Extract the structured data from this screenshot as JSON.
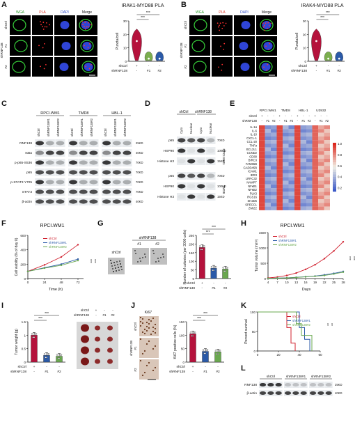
{
  "panels": {
    "A": {
      "letter": "A",
      "title": "IRAK1-MYD88 PLA",
      "channels": [
        "WGA",
        "PLA",
        "DAPI",
        "Merge"
      ],
      "row_labels": [
        "shCtrl",
        "#1",
        "#2"
      ],
      "group_label": "shRNF138",
      "ylabel": "Puncta/cell",
      "sig": [
        "***",
        "***"
      ],
      "xrows": [
        {
          "label": "shCtrl",
          "vals": [
            "+",
            "-",
            "-"
          ]
        },
        {
          "label": "shRNF138",
          "vals": [
            "-",
            "#1",
            "#2"
          ]
        }
      ]
    },
    "B": {
      "letter": "B",
      "title": "IRAK4-MYD88 PLA",
      "channels": [
        "WGA",
        "PLA",
        "DAPI",
        "Merge"
      ],
      "row_labels": [
        "shCtrl",
        "#1",
        "#2"
      ],
      "group_label": "shRNF138",
      "ylabel": "Puncta/cell",
      "sig": [
        "***",
        "***"
      ],
      "xrows": [
        {
          "label": "shCtrl",
          "vals": [
            "+",
            "-",
            "-"
          ]
        },
        {
          "label": "shRNF138",
          "vals": [
            "-",
            "#1",
            "#2"
          ]
        }
      ]
    },
    "C": {
      "letter": "C",
      "cells": [
        "RPCI.WM1",
        "TMD8",
        "HBL-1"
      ],
      "lanes": [
        "shCtrl",
        "shRNF138#1",
        "shRNF138#2"
      ],
      "blots": [
        "RNF138",
        "IκBα",
        "p-p65-S536",
        "p65",
        "p-STAT3 Y705",
        "STAT3",
        "β-actin"
      ],
      "mw": [
        "25KD",
        "40KD",
        "70KD",
        "70KD",
        "70KD",
        "70KD",
        "40KD"
      ]
    },
    "D": {
      "letter": "D",
      "groups": [
        "shCtrl",
        "shRNF138"
      ],
      "fractions": [
        "Cyto",
        "Nuclear",
        "Cyto",
        "Nuclear"
      ],
      "blots": [
        "p65",
        "HSP90",
        "Histone H3",
        "p65",
        "HSP90",
        "Histone H3"
      ],
      "mw": [
        "70KD",
        "100KD",
        "15KD",
        "70KD",
        "100KD",
        "15KD"
      ],
      "cells": [
        "RPCI.WM1",
        "TMD8"
      ]
    },
    "E": {
      "letter": "E",
      "cells": [
        "RPCI.WM1",
        "TMD8",
        "HBL-1",
        "U2932"
      ],
      "row1": {
        "label": "shCtrl",
        "vals": [
          "+",
          "-",
          "-",
          "+",
          "-",
          "-",
          "+",
          "-",
          "-",
          "+",
          "-",
          "-"
        ]
      },
      "row2": {
        "label": "shRNF138",
        "vals": [
          "-",
          "#1",
          "#2",
          "-",
          "#1",
          "#2",
          "-",
          "#1",
          "#2",
          "-",
          "#1",
          "#2"
        ]
      },
      "genes": [
        "IL-1α",
        "IL-6",
        "IL-10",
        "CXCL-1",
        "CCL-20",
        "TNFα",
        "BCL2L1",
        "CCND2",
        "CD80",
        "BIRC3",
        "FAM65B",
        "GADD45B",
        "ICAM1",
        "IER3",
        "LRRC32",
        "NAMPT",
        "NFκB1",
        "NFκB2",
        "PLK3",
        "RGS16",
        "SH2D5",
        "SPECC1",
        "ZMIZ2"
      ],
      "scale": [
        "1.0",
        "0.8",
        "0.6",
        "0.4",
        "0.2"
      ]
    },
    "F": {
      "letter": "F",
      "title": "RPCI.WM1",
      "ylabel": "Cell viability (% of day 0)",
      "xlabel": "Time (h)",
      "legend": [
        "shCtrl",
        "shRNF138#1",
        "shRNF138#2"
      ],
      "sig": [
        "***",
        "***"
      ]
    },
    "G": {
      "letter": "G",
      "img_labels": [
        "shCtrl",
        "shRNF138",
        "#1",
        "#2"
      ],
      "ylabel": "Number of colonies (per 3000 cells)",
      "sig": [
        "***",
        "***"
      ],
      "xrows": [
        {
          "label": "shCtrl",
          "vals": [
            "+",
            "-",
            "-"
          ]
        },
        {
          "label": "shRNF138",
          "vals": [
            "-",
            "#1",
            "#2"
          ]
        }
      ]
    },
    "H": {
      "letter": "H",
      "title": "RPCI.WM1",
      "ylabel": "Tumor volume (mm³)",
      "xlabel": "Days",
      "legend": [
        "shCtrl",
        "shRNF138#1",
        "shRNF138#2"
      ],
      "sig": [
        "***",
        "***"
      ]
    },
    "I": {
      "letter": "I",
      "ylabel": "Tumor weight (g)",
      "sig": [
        "***",
        "***"
      ],
      "xrows": [
        {
          "label": "shCtrl",
          "vals": [
            "+",
            "-",
            "-"
          ]
        },
        {
          "label": "shRNF138",
          "vals": [
            "-",
            "#1",
            "#2"
          ]
        }
      ],
      "img_rows": [
        {
          "label": "shCtrl",
          "vals": [
            "+",
            "-",
            "-"
          ]
        },
        {
          "label": "shRNF138",
          "vals": [
            "-",
            "#1",
            "#2"
          ]
        }
      ]
    },
    "J": {
      "letter": "J",
      "img_title": "Ki67",
      "img_labels": [
        "shCtrl",
        "#1",
        "#2"
      ],
      "group_label": "shRNF138",
      "ylabel": "Ki67 positive cells (%)",
      "sig": [
        "***",
        "***"
      ],
      "xrows": [
        {
          "label": "shCtrl",
          "vals": [
            "+",
            "-",
            "-"
          ]
        },
        {
          "label": "shRNF138",
          "vals": [
            "-",
            "#1",
            "#2"
          ]
        }
      ]
    },
    "K": {
      "letter": "K",
      "ylabel": "Percent survival",
      "legend": [
        "shCtrl",
        "shRNF138#1",
        "shRNF138#2"
      ],
      "sig": [
        "**",
        "**"
      ]
    },
    "L": {
      "letter": "L",
      "groups": [
        "shCtrl",
        "shRNF138#1",
        "shRNF138#2"
      ],
      "blots": [
        "RNF138",
        "β-actin"
      ],
      "mw": [
        "25KD",
        "40KD"
      ]
    }
  },
  "chart_data": [
    {
      "panel": "A",
      "type": "violin",
      "categories": [
        "shCtrl",
        "shRNF138#1",
        "shRNF138#2"
      ],
      "values": [
        15,
        2,
        2
      ],
      "ylim": [
        0,
        30
      ],
      "yticks": [
        0,
        10,
        20,
        30
      ],
      "colors": [
        "#b5123c",
        "#7bae4e",
        "#2b5aa8"
      ]
    },
    {
      "panel": "B",
      "type": "violin",
      "categories": [
        "shCtrl",
        "shRNF138#1",
        "shRNF138#2"
      ],
      "values": [
        15,
        2,
        2
      ],
      "ylim": [
        0,
        30
      ],
      "yticks": [
        0,
        10,
        20,
        30
      ],
      "colors": [
        "#b5123c",
        "#7bae4e",
        "#2b5aa8"
      ]
    },
    {
      "panel": "F",
      "type": "line",
      "x": [
        0,
        24,
        48,
        72
      ],
      "xticks": [
        "0",
        "24",
        "48",
        "72"
      ],
      "ylim": [
        0,
        600
      ],
      "yticks": [
        0,
        200,
        400,
        600
      ],
      "series": [
        {
          "name": "shCtrl",
          "values": [
            100,
            190,
            300,
            470
          ],
          "color": "#d0202e"
        },
        {
          "name": "shRNF138#1",
          "values": [
            100,
            150,
            200,
            270
          ],
          "color": "#2b5aa8"
        },
        {
          "name": "shRNF138#2",
          "values": [
            100,
            145,
            185,
            250
          ],
          "color": "#6aa84f"
        }
      ]
    },
    {
      "panel": "G",
      "type": "bar",
      "categories": [
        "shCtrl",
        "#1",
        "#2"
      ],
      "values": [
        180,
        60,
        55
      ],
      "ylim": [
        0,
        250
      ],
      "yticks": [
        0,
        50,
        100,
        150,
        200,
        250
      ],
      "colors": [
        "#b5123c",
        "#2b5aa8",
        "#6aa84f"
      ]
    },
    {
      "panel": "H",
      "type": "line",
      "x": [
        4,
        7,
        10,
        13,
        16,
        19,
        22,
        25,
        28
      ],
      "xticks": [
        "4",
        "7",
        "10",
        "13",
        "16",
        "19",
        "22",
        "25",
        "28"
      ],
      "ylim": [
        0,
        1500
      ],
      "yticks": [
        0,
        500,
        1000,
        1500
      ],
      "series": [
        {
          "name": "shCtrl",
          "values": [
            20,
            50,
            100,
            180,
            300,
            450,
            650,
            900,
            1200
          ],
          "color": "#d0202e"
        },
        {
          "name": "shRNF138#1",
          "values": [
            10,
            15,
            25,
            40,
            60,
            80,
            120,
            170,
            230
          ],
          "color": "#2b5aa8"
        },
        {
          "name": "shRNF138#2",
          "values": [
            10,
            15,
            20,
            35,
            55,
            75,
            100,
            150,
            210
          ],
          "color": "#6aa84f"
        }
      ]
    },
    {
      "panel": "I",
      "type": "bar",
      "categories": [
        "shCtrl",
        "#1",
        "#2"
      ],
      "values": [
        1.0,
        0.25,
        0.22
      ],
      "ylim": [
        0,
        1.5
      ],
      "yticks": [
        0.0,
        0.5,
        1.0,
        1.5
      ],
      "colors": [
        "#b5123c",
        "#2b5aa8",
        "#6aa84f"
      ]
    },
    {
      "panel": "J",
      "type": "bar",
      "categories": [
        "shCtrl",
        "#1",
        "#2"
      ],
      "values": [
        105,
        40,
        38
      ],
      "ylim": [
        0,
        150
      ],
      "yticks": [
        0,
        50,
        100,
        150
      ],
      "colors": [
        "#b5123c",
        "#2b5aa8",
        "#6aa84f"
      ]
    },
    {
      "panel": "K",
      "type": "line",
      "x": [
        0,
        20,
        40,
        60
      ],
      "xticks": [
        "0",
        "20",
        "40",
        "60"
      ],
      "ylim": [
        0,
        100
      ],
      "yticks": [
        0,
        50,
        100
      ],
      "series": [
        {
          "name": "shCtrl",
          "points": [
            [
              0,
              100
            ],
            [
              25,
              100
            ],
            [
              28,
              60
            ],
            [
              32,
              20
            ],
            [
              36,
              0
            ]
          ],
          "color": "#d0202e"
        },
        {
          "name": "shRNF138#1",
          "points": [
            [
              0,
              100
            ],
            [
              35,
              100
            ],
            [
              40,
              60
            ],
            [
              45,
              30
            ],
            [
              50,
              0
            ]
          ],
          "color": "#2b5aa8"
        },
        {
          "name": "shRNF138#2",
          "points": [
            [
              0,
              100
            ],
            [
              32,
              100
            ],
            [
              37,
              70
            ],
            [
              42,
              40
            ],
            [
              52,
              0
            ]
          ],
          "color": "#6aa84f"
        }
      ]
    }
  ]
}
